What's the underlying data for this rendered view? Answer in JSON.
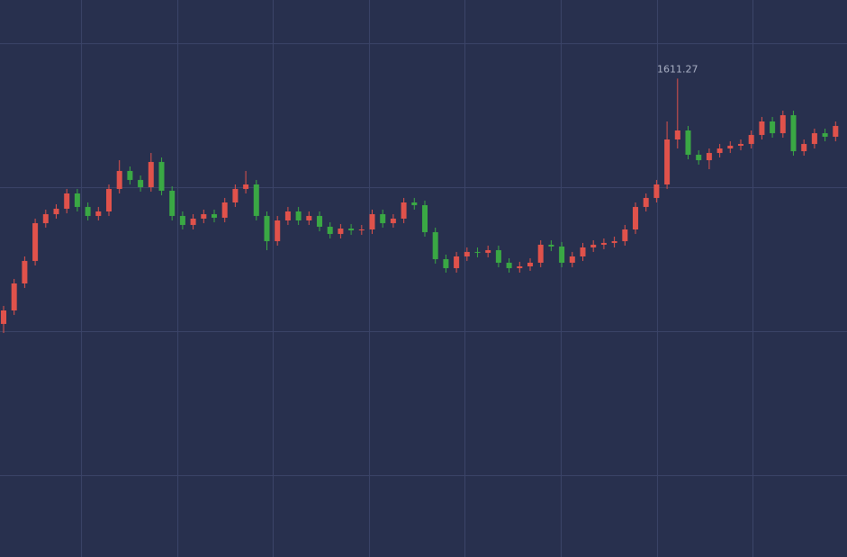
{
  "chart_data": {
    "type": "candlestick",
    "ylim": [
      1558.1,
      1620
    ],
    "up_color": "#e0524b",
    "down_color": "#3aa844",
    "grid": true,
    "open": [
      1584.0,
      1585.5,
      1588.5,
      1591.0,
      1595.2,
      1596.2,
      1596.8,
      1598.5,
      1597.0,
      1596.0,
      1596.5,
      1599.0,
      1601.0,
      1600.0,
      1599.2,
      1602.0,
      1598.8,
      1596.0,
      1595.0,
      1595.7,
      1596.2,
      1595.8,
      1597.5,
      1599.0,
      1599.5,
      1596.0,
      1593.2,
      1595.5,
      1596.5,
      1595.5,
      1596.0,
      1594.8,
      1594.0,
      1594.6,
      1594.4,
      1594.5,
      1596.2,
      1595.2,
      1595.7,
      1597.5,
      1597.2,
      1594.2,
      1591.2,
      1590.2,
      1591.5,
      1592.0,
      1591.9,
      1592.2,
      1590.8,
      1590.2,
      1590.4,
      1590.8,
      1592.8,
      1592.6,
      1590.8,
      1591.5,
      1592.5,
      1592.8,
      1593.0,
      1593.2,
      1594.5,
      1597.0,
      1598.0,
      1599.5,
      1604.5,
      1605.5,
      1602.8,
      1602.2,
      1603.0,
      1603.5,
      1603.8,
      1604.0,
      1605.0,
      1606.5,
      1605.2,
      1607.2,
      1603.2,
      1604.0,
      1605.2,
      1604.8
    ],
    "high": [
      1586.0,
      1589.0,
      1591.5,
      1595.7,
      1596.7,
      1597.3,
      1599.0,
      1599.0,
      1597.5,
      1597.0,
      1599.5,
      1602.2,
      1601.5,
      1600.5,
      1603.0,
      1602.5,
      1599.3,
      1596.5,
      1596.2,
      1596.7,
      1596.7,
      1598.0,
      1599.5,
      1601.0,
      1600.0,
      1596.5,
      1596.0,
      1597.0,
      1597.0,
      1596.5,
      1596.5,
      1595.3,
      1595.1,
      1595.1,
      1595.0,
      1596.7,
      1596.7,
      1596.2,
      1598.0,
      1598.0,
      1597.7,
      1594.7,
      1591.7,
      1592.0,
      1592.5,
      1592.5,
      1592.7,
      1592.7,
      1591.3,
      1590.9,
      1591.3,
      1593.3,
      1593.3,
      1593.1,
      1592.0,
      1593.0,
      1593.3,
      1593.5,
      1593.7,
      1595.0,
      1597.5,
      1598.5,
      1600.0,
      1606.5,
      1611.27,
      1606.0,
      1603.3,
      1603.5,
      1604.0,
      1604.3,
      1604.5,
      1605.5,
      1607.0,
      1607.0,
      1607.7,
      1607.7,
      1604.5,
      1605.7,
      1605.7,
      1606.5
    ],
    "low": [
      1583.0,
      1585.0,
      1588.0,
      1590.5,
      1594.7,
      1595.7,
      1596.3,
      1596.5,
      1595.5,
      1595.5,
      1596.0,
      1598.5,
      1599.5,
      1598.7,
      1598.7,
      1598.3,
      1595.5,
      1594.5,
      1594.5,
      1595.2,
      1595.3,
      1595.3,
      1597.0,
      1598.5,
      1595.5,
      1592.2,
      1592.7,
      1595.0,
      1595.0,
      1595.0,
      1594.3,
      1593.5,
      1593.5,
      1593.9,
      1593.9,
      1594.0,
      1594.7,
      1594.7,
      1595.2,
      1596.7,
      1593.7,
      1590.7,
      1589.7,
      1589.7,
      1591.0,
      1591.4,
      1591.4,
      1590.3,
      1589.7,
      1589.7,
      1589.9,
      1590.3,
      1592.1,
      1590.3,
      1590.3,
      1591.0,
      1592.0,
      1592.3,
      1592.5,
      1592.7,
      1594.0,
      1596.5,
      1597.5,
      1599.0,
      1603.5,
      1602.3,
      1601.7,
      1601.2,
      1602.5,
      1603.0,
      1603.3,
      1603.5,
      1604.5,
      1604.7,
      1604.7,
      1602.7,
      1602.7,
      1603.5,
      1604.3,
      1604.3
    ],
    "close": [
      1585.5,
      1588.5,
      1591.0,
      1595.2,
      1596.2,
      1596.8,
      1598.5,
      1597.0,
      1596.0,
      1596.5,
      1599.0,
      1601.0,
      1600.0,
      1599.2,
      1602.0,
      1598.8,
      1596.0,
      1595.0,
      1595.7,
      1596.2,
      1595.8,
      1597.5,
      1599.0,
      1599.5,
      1596.0,
      1593.2,
      1595.5,
      1596.5,
      1595.5,
      1596.0,
      1594.8,
      1594.0,
      1594.6,
      1594.4,
      1594.5,
      1596.2,
      1595.2,
      1595.7,
      1597.5,
      1597.2,
      1594.2,
      1591.2,
      1590.2,
      1591.5,
      1592.0,
      1591.9,
      1592.2,
      1590.8,
      1590.2,
      1590.4,
      1590.8,
      1592.8,
      1592.6,
      1590.8,
      1591.5,
      1592.5,
      1592.8,
      1593.0,
      1593.2,
      1594.5,
      1597.0,
      1598.0,
      1599.5,
      1604.5,
      1605.5,
      1602.8,
      1602.2,
      1603.0,
      1603.5,
      1603.8,
      1604.0,
      1605.0,
      1606.5,
      1605.2,
      1607.2,
      1603.2,
      1604.0,
      1605.2,
      1604.8,
      1606.0
    ]
  }
}
